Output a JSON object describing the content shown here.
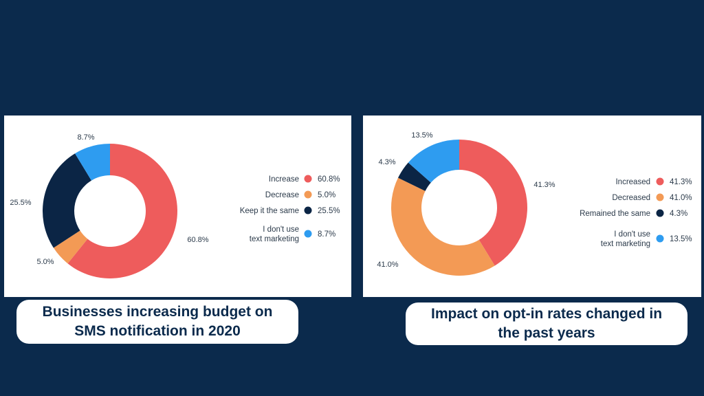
{
  "chart_data": [
    {
      "type": "pie",
      "title": "Businesses increasing budget on SMS notification in 2020",
      "categories": [
        "Increase",
        "Decrease",
        "Keep it the same",
        "I don't use text marketing"
      ],
      "legend_lines": [
        [
          "Increase"
        ],
        [
          "Decrease"
        ],
        [
          "Keep it the same"
        ],
        [
          "I don't use",
          "text marketing"
        ]
      ],
      "values": [
        60.8,
        5.0,
        25.5,
        8.7
      ],
      "value_labels": [
        "60.8%",
        "5.0%",
        "25.5%",
        "8.7%"
      ],
      "colors": [
        "#ee5c5c",
        "#f39a55",
        "#0b2545",
        "#2e9cf0"
      ],
      "legend_position": "right",
      "style": "donut"
    },
    {
      "type": "pie",
      "title": "Impact on opt-in rates changed in the past years",
      "categories": [
        "Increased",
        "Decreased",
        "Remained the same",
        "I don't use text marketing"
      ],
      "legend_lines": [
        [
          "Increased"
        ],
        [
          "Decreased"
        ],
        [
          "Remained the same"
        ],
        [
          "I don't use",
          "text marketing"
        ]
      ],
      "values": [
        41.3,
        41.0,
        4.3,
        13.5
      ],
      "value_labels": [
        "41.3%",
        "41.0%",
        "4.3%",
        "13.5%"
      ],
      "colors": [
        "#ee5c5c",
        "#f39a55",
        "#0b2545",
        "#2e9cf0"
      ],
      "legend_position": "right",
      "style": "donut"
    }
  ],
  "captions": {
    "left": "Businesses increasing budget on\nSMS notification in 2020",
    "right": "Impact on opt-in rates changed in\nthe past years"
  }
}
